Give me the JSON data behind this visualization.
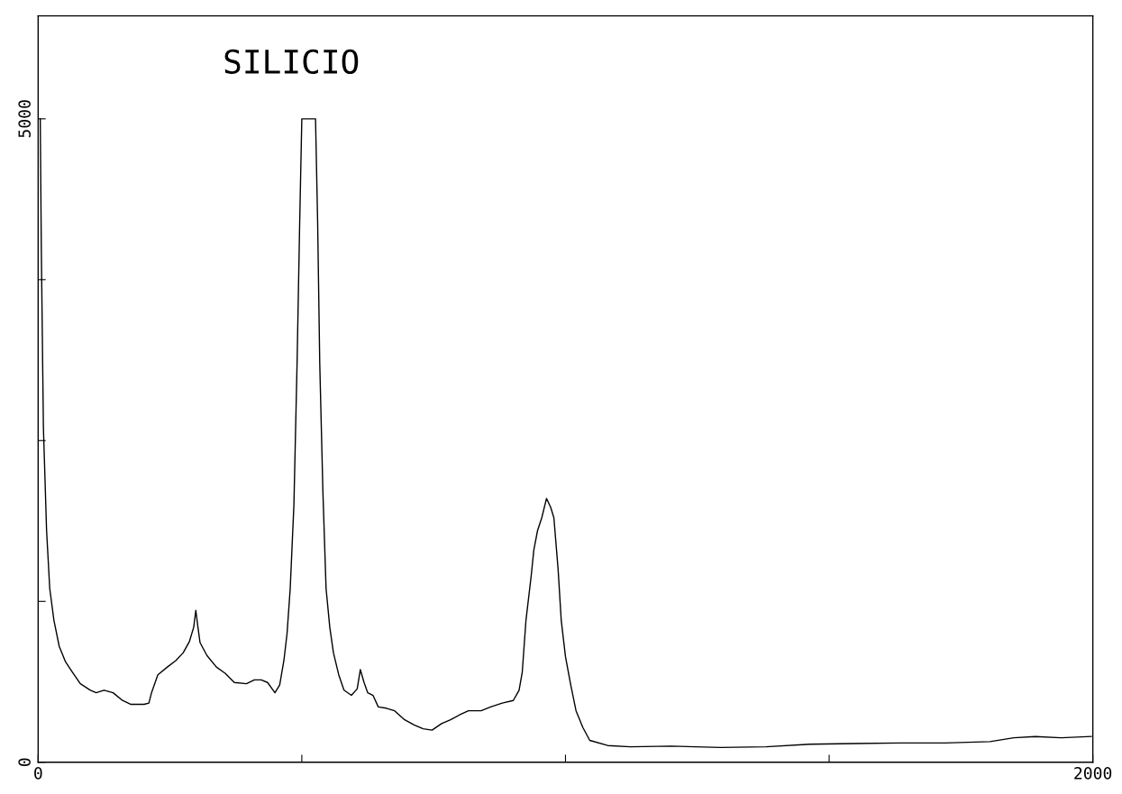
{
  "chart_data": {
    "type": "line",
    "annotations": [
      "SILICIO"
    ],
    "xlim": [
      0,
      2000
    ],
    "ylim": [
      0,
      5800
    ],
    "xticks": [
      0,
      {
        "value": 500,
        "label": null
      },
      {
        "value": 1000,
        "label": null
      },
      {
        "value": 1500,
        "label": null
      },
      2000
    ],
    "yticks": [
      0,
      {
        "value": 1250,
        "label": null
      },
      {
        "value": 2500,
        "label": null
      },
      {
        "value": 3750,
        "label": null
      },
      5000
    ],
    "grid": false,
    "marker": "none",
    "line_style": "solid",
    "series": [
      {
        "color": "#000000",
        "x": [
          4,
          6,
          10,
          16,
          22,
          30,
          40,
          52,
          65,
          80,
          99,
          110,
          125,
          142,
          160,
          176,
          190,
          201,
          210,
          215,
          227,
          245,
          261,
          275,
          287,
          295,
          299,
          303,
          307,
          320,
          338,
          355,
          372,
          395,
          410,
          423,
          435,
          449,
          458,
          466,
          472,
          478,
          485,
          491,
          496,
          500,
          526,
          530,
          534,
          540,
          546,
          553,
          560,
          570,
          580,
          594,
          605,
          611,
          618,
          625,
          635,
          645,
          660,
          676,
          695,
          713,
          730,
          747,
          765,
          782,
          800,
          816,
          840,
          858,
          880,
          901,
          912,
          918,
          925,
          935,
          940,
          947,
          955,
          964,
          972,
          978,
          986,
          992,
          1000,
          1010,
          1020,
          1033,
          1046,
          1080,
          1123,
          1200,
          1294,
          1380,
          1464,
          1550,
          1635,
          1720,
          1805,
          1850,
          1891,
          1940,
          1997
        ],
        "values": [
          5000,
          4000,
          2600,
          1800,
          1350,
          1100,
          900,
          780,
          700,
          610,
          560,
          540,
          560,
          540,
          480,
          450,
          450,
          450,
          460,
          540,
          680,
          740,
          790,
          850,
          940,
          1050,
          1180,
          1050,
          930,
          830,
          740,
          690,
          620,
          610,
          640,
          640,
          620,
          540,
          600,
          790,
          1000,
          1350,
          2000,
          3100,
          4200,
          5000,
          5000,
          4200,
          3100,
          2100,
          1350,
          1050,
          850,
          680,
          560,
          520,
          570,
          720,
          620,
          540,
          520,
          430,
          420,
          400,
          330,
          290,
          260,
          250,
          300,
          330,
          370,
          400,
          400,
          430,
          460,
          480,
          560,
          700,
          1100,
          1450,
          1650,
          1800,
          1900,
          2050,
          1980,
          1900,
          1500,
          1100,
          820,
          600,
          400,
          270,
          170,
          130,
          120,
          125,
          115,
          120,
          140,
          145,
          150,
          150,
          160,
          190,
          200,
          190,
          200
        ]
      }
    ]
  }
}
